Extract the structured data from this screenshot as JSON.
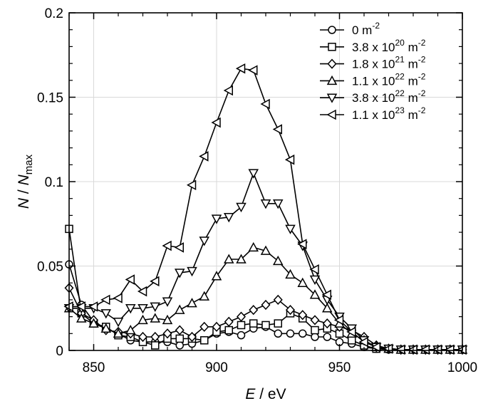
{
  "chart_data": {
    "type": "line",
    "title": "",
    "xlabel": {
      "italic": "E",
      "rest": " / eV"
    },
    "ylabel": {
      "italic_n": "N",
      "sep": " / ",
      "italic_n2": "N",
      "sub": "max"
    },
    "xlim": [
      840,
      1000
    ],
    "ylim": [
      0,
      0.2
    ],
    "xticks": [
      850,
      900,
      950,
      1000
    ],
    "xtick_labels": [
      "850",
      "900",
      "950",
      "1000"
    ],
    "yticks": [
      0,
      0.05,
      0.1,
      0.15,
      0.2
    ],
    "ytick_labels": [
      "0",
      "0.05",
      "0.1",
      "0.15",
      "0.2"
    ],
    "grid": true,
    "legend_position": "top-right",
    "series": [
      {
        "name": "0 m-2",
        "label": {
          "base": "0 m",
          "sup1": "",
          "mid": "",
          "sup2": "-2"
        },
        "marker": "circle",
        "x": [
          840,
          845,
          850,
          855,
          860,
          865,
          870,
          875,
          880,
          885,
          890,
          895,
          900,
          905,
          910,
          915,
          920,
          925,
          930,
          935,
          940,
          945,
          950,
          955,
          960,
          965,
          970,
          975,
          980,
          985,
          990,
          995,
          1000
        ],
        "y": [
          0.051,
          0.027,
          0.017,
          0.013,
          0.01,
          0.006,
          0.005,
          0.005,
          0.005,
          0.003,
          0.004,
          0.006,
          0.01,
          0.011,
          0.009,
          0.013,
          0.014,
          0.01,
          0.01,
          0.01,
          0.008,
          0.008,
          0.005,
          0.004,
          0.002,
          0.001,
          0.0005,
          0.0005,
          0.0005,
          0.0005,
          0.0005,
          0.0005,
          0.0005
        ]
      },
      {
        "name": "3.8 x 10^20 m-2",
        "label": {
          "base": "3.8 x 10",
          "sup1": "20",
          "mid": " m",
          "sup2": "-2"
        },
        "marker": "square",
        "x": [
          840,
          845,
          850,
          855,
          860,
          865,
          870,
          875,
          880,
          885,
          890,
          895,
          900,
          905,
          910,
          915,
          920,
          925,
          930,
          935,
          940,
          945,
          950,
          955,
          960,
          965,
          970,
          975,
          980,
          985,
          990,
          995,
          1000
        ],
        "y": [
          0.072,
          0.022,
          0.016,
          0.014,
          0.009,
          0.008,
          0.005,
          0.003,
          0.007,
          0.007,
          0.007,
          0.006,
          0.011,
          0.012,
          0.015,
          0.016,
          0.015,
          0.016,
          0.022,
          0.019,
          0.012,
          0.013,
          0.01,
          0.006,
          0.003,
          0.001,
          0.001,
          0.0005,
          0.0005,
          0.0005,
          0.0005,
          0.0005,
          0.0005
        ]
      },
      {
        "name": "1.8 x 10^21 m-2",
        "label": {
          "base": "1.8 x 10",
          "sup1": "21",
          "mid": " m",
          "sup2": "-2"
        },
        "marker": "diamond",
        "x": [
          840,
          845,
          850,
          855,
          860,
          865,
          870,
          875,
          880,
          885,
          890,
          895,
          900,
          905,
          910,
          915,
          920,
          925,
          930,
          935,
          940,
          945,
          950,
          955,
          960,
          965,
          970,
          975,
          980,
          985,
          990,
          995,
          1000
        ],
        "y": [
          0.037,
          0.022,
          0.018,
          0.012,
          0.011,
          0.01,
          0.008,
          0.008,
          0.01,
          0.012,
          0.008,
          0.014,
          0.014,
          0.017,
          0.02,
          0.024,
          0.027,
          0.03,
          0.024,
          0.021,
          0.018,
          0.016,
          0.014,
          0.012,
          0.008,
          0.003,
          0.001,
          0.0005,
          0.0005,
          0.0005,
          0.0005,
          0.0005,
          0.0005
        ]
      },
      {
        "name": "1.1 x 10^22 m-2",
        "label": {
          "base": "1.1 x 10",
          "sup1": "22",
          "mid": " m",
          "sup2": "-2"
        },
        "marker": "triangle-up",
        "x": [
          840,
          845,
          850,
          855,
          860,
          865,
          870,
          875,
          880,
          885,
          890,
          895,
          900,
          905,
          910,
          915,
          920,
          925,
          930,
          935,
          940,
          945,
          950,
          955,
          960,
          965,
          970,
          975,
          980,
          985,
          990,
          995,
          1000
        ],
        "y": [
          0.025,
          0.019,
          0.016,
          0.013,
          0.01,
          0.012,
          0.018,
          0.019,
          0.018,
          0.024,
          0.028,
          0.032,
          0.044,
          0.054,
          0.054,
          0.061,
          0.059,
          0.053,
          0.045,
          0.04,
          0.033,
          0.025,
          0.016,
          0.01,
          0.006,
          0.002,
          0.001,
          0.0005,
          0.0005,
          0.0005,
          0.0005,
          0.0005,
          0.0005
        ]
      },
      {
        "name": "3.8 x 10^22 m-2",
        "label": {
          "base": "3.8 x 10",
          "sup1": "22",
          "mid": " m",
          "sup2": "-2"
        },
        "marker": "triangle-down",
        "x": [
          840,
          845,
          850,
          855,
          860,
          865,
          870,
          875,
          880,
          885,
          890,
          895,
          900,
          905,
          910,
          915,
          920,
          925,
          930,
          935,
          940,
          945,
          950,
          955,
          960,
          965,
          970,
          975,
          980,
          985,
          990,
          995,
          1000
        ],
        "y": [
          0.025,
          0.025,
          0.025,
          0.022,
          0.017,
          0.025,
          0.025,
          0.026,
          0.029,
          0.046,
          0.047,
          0.065,
          0.078,
          0.079,
          0.085,
          0.105,
          0.087,
          0.087,
          0.072,
          0.062,
          0.042,
          0.03,
          0.02,
          0.013,
          0.006,
          0.002,
          0.001,
          0.0005,
          0.0005,
          0.0005,
          0.0005,
          0.0005,
          0.0005
        ]
      },
      {
        "name": "1.1 x 10^23 m-2",
        "label": {
          "base": "1.1 x 10",
          "sup1": "23",
          "mid": " m",
          "sup2": "-2"
        },
        "marker": "triangle-left",
        "x": [
          840,
          845,
          850,
          855,
          860,
          865,
          870,
          875,
          880,
          885,
          890,
          895,
          900,
          905,
          910,
          915,
          920,
          925,
          930,
          935,
          940,
          945,
          950,
          955,
          960,
          965,
          970,
          975,
          980,
          985,
          990,
          995,
          1000
        ],
        "y": [
          0.026,
          0.026,
          0.026,
          0.03,
          0.031,
          0.042,
          0.035,
          0.041,
          0.062,
          0.061,
          0.098,
          0.115,
          0.135,
          0.154,
          0.167,
          0.166,
          0.146,
          0.131,
          0.113,
          0.063,
          0.048,
          0.033,
          0.018,
          0.011,
          0.005,
          0.002,
          0.001,
          0.0005,
          0.0005,
          0.0005,
          0.0005,
          0.0005,
          0.0005
        ]
      }
    ]
  }
}
